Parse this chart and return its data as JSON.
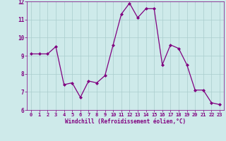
{
  "x": [
    0,
    1,
    2,
    3,
    4,
    5,
    6,
    7,
    8,
    9,
    10,
    11,
    12,
    13,
    14,
    15,
    16,
    17,
    18,
    19,
    20,
    21,
    22,
    23
  ],
  "y": [
    9.1,
    9.1,
    9.1,
    9.5,
    7.4,
    7.5,
    6.7,
    7.6,
    7.5,
    7.9,
    9.6,
    11.3,
    11.9,
    11.1,
    11.6,
    11.6,
    8.5,
    9.6,
    9.4,
    8.5,
    7.1,
    7.1,
    6.4,
    6.3
  ],
  "line_color": "#800080",
  "marker": "D",
  "marker_size": 2,
  "bg_color": "#ceeaea",
  "grid_color": "#aacccc",
  "xlabel": "Windchill (Refroidissement éolien,°C)",
  "xlabel_color": "#800080",
  "tick_color": "#800080",
  "ylim": [
    6,
    12
  ],
  "xlim": [
    -0.5,
    23.5
  ],
  "yticks": [
    6,
    7,
    8,
    9,
    10,
    11,
    12
  ],
  "xticks": [
    0,
    1,
    2,
    3,
    4,
    5,
    6,
    7,
    8,
    9,
    10,
    11,
    12,
    13,
    14,
    15,
    16,
    17,
    18,
    19,
    20,
    21,
    22,
    23
  ]
}
